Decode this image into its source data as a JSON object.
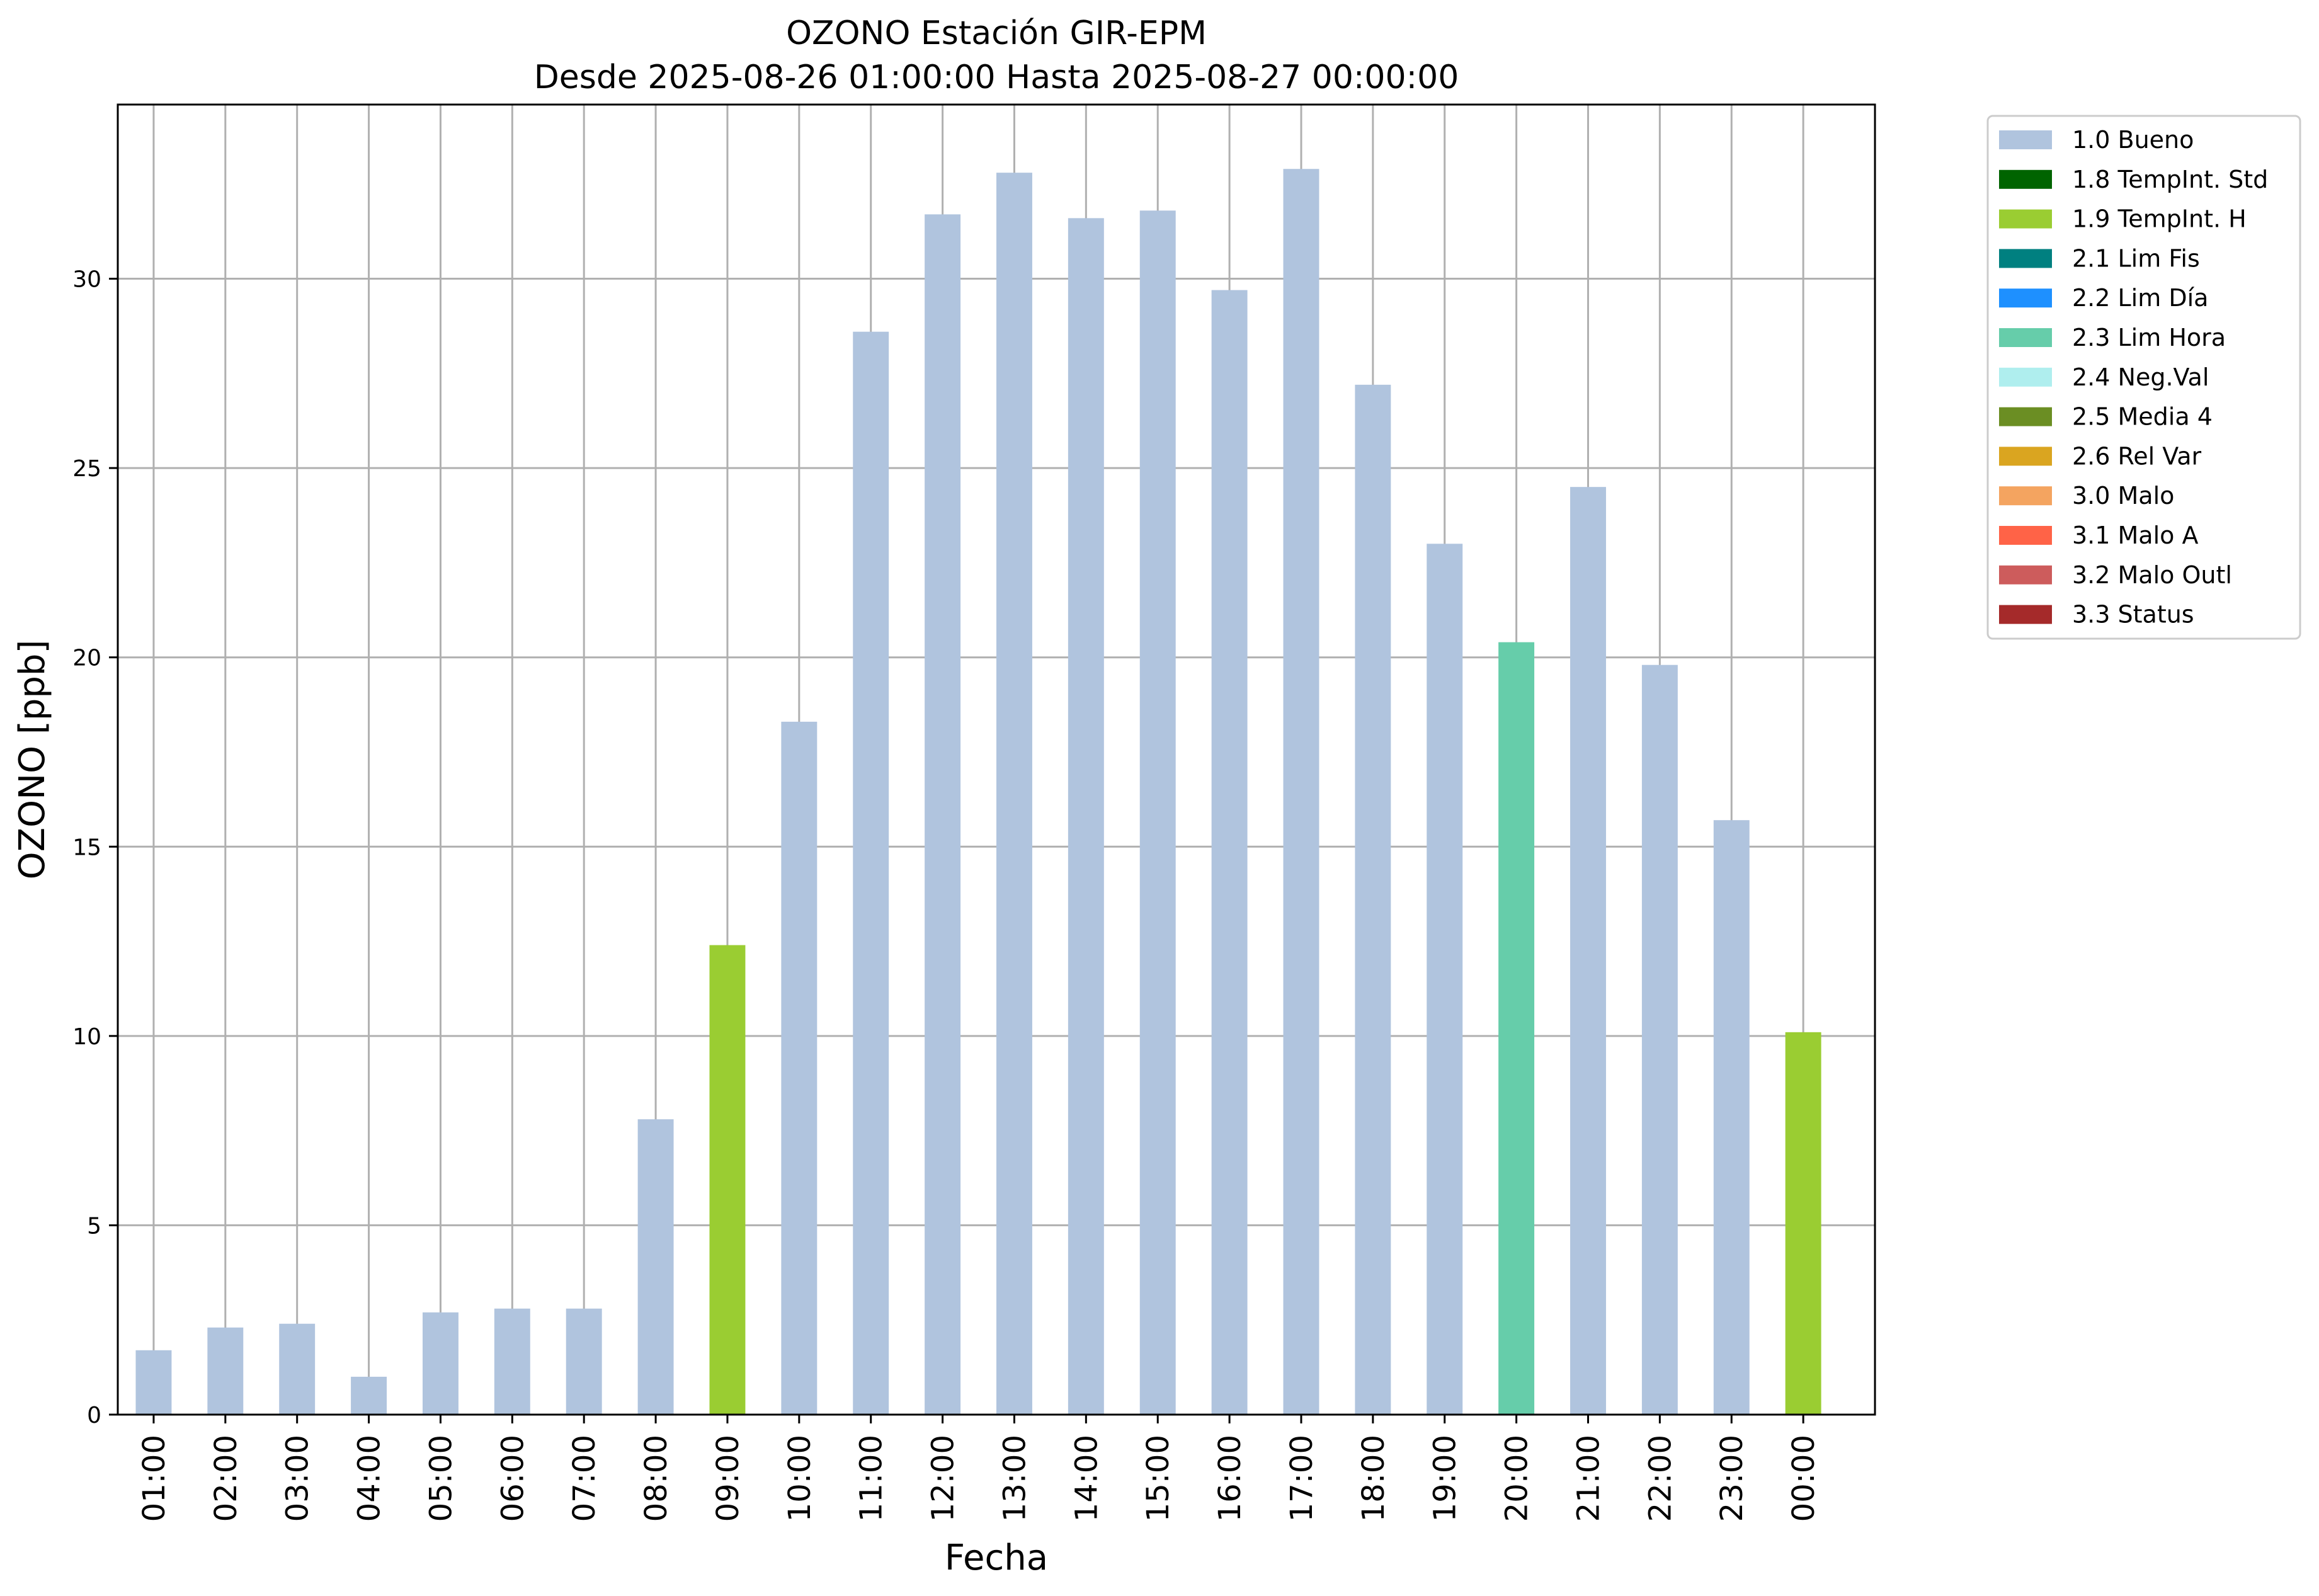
{
  "chart_data": {
    "type": "bar",
    "title": "OZONO Estación GIR-EPM",
    "subtitle": "Desde 2025-08-26 01:00:00 Hasta 2025-08-27 00:00:00",
    "xlabel": "Fecha",
    "ylabel": "OZONO [ppb]",
    "ylim": [
      0,
      34.6
    ],
    "yticks": [
      0,
      5,
      10,
      15,
      20,
      25,
      30
    ],
    "grid": true,
    "legend_placement": "outside-top-right",
    "categories": [
      "01:00",
      "02:00",
      "03:00",
      "04:00",
      "05:00",
      "06:00",
      "07:00",
      "08:00",
      "09:00",
      "10:00",
      "11:00",
      "12:00",
      "13:00",
      "14:00",
      "15:00",
      "16:00",
      "17:00",
      "18:00",
      "19:00",
      "20:00",
      "21:00",
      "22:00",
      "23:00",
      "00:00"
    ],
    "values": [
      1.7,
      2.3,
      2.4,
      1.0,
      2.7,
      2.8,
      2.8,
      7.8,
      12.4,
      18.3,
      28.6,
      31.7,
      32.8,
      31.6,
      31.8,
      29.7,
      32.9,
      27.2,
      23.0,
      20.4,
      24.5,
      19.8,
      15.7,
      10.1
    ],
    "flags": [
      "1.0 Bueno",
      "1.0 Bueno",
      "1.0 Bueno",
      "1.0 Bueno",
      "1.0 Bueno",
      "1.0 Bueno",
      "1.0 Bueno",
      "1.0 Bueno",
      "1.9 TempInt. H",
      "1.0 Bueno",
      "1.0 Bueno",
      "1.0 Bueno",
      "1.0 Bueno",
      "1.0 Bueno",
      "1.0 Bueno",
      "1.0 Bueno",
      "1.0 Bueno",
      "1.0 Bueno",
      "1.0 Bueno",
      "2.3 Lim Hora",
      "1.0 Bueno",
      "1.0 Bueno",
      "1.0 Bueno",
      "1.9 TempInt. H"
    ],
    "legend": [
      {
        "label": "1.0 Bueno",
        "color": "#b0c4de"
      },
      {
        "label": "1.8 TempInt. Std",
        "color": "#006400"
      },
      {
        "label": "1.9 TempInt. H",
        "color": "#9acd32"
      },
      {
        "label": "2.1 Lim Fis",
        "color": "#008080"
      },
      {
        "label": "2.2 Lim Día",
        "color": "#1e90ff"
      },
      {
        "label": "2.3 Lim Hora",
        "color": "#66cdaa"
      },
      {
        "label": "2.4 Neg.Val",
        "color": "#afeeee"
      },
      {
        "label": "2.5 Media 4",
        "color": "#6b8e23"
      },
      {
        "label": "2.6 Rel Var",
        "color": "#daa520"
      },
      {
        "label": "3.0 Malo",
        "color": "#f4a460"
      },
      {
        "label": "3.1 Malo A",
        "color": "#ff6347"
      },
      {
        "label": "3.2 Malo Outl",
        "color": "#cd5c5c"
      },
      {
        "label": "3.3 Status",
        "color": "#a52a2a"
      }
    ]
  }
}
